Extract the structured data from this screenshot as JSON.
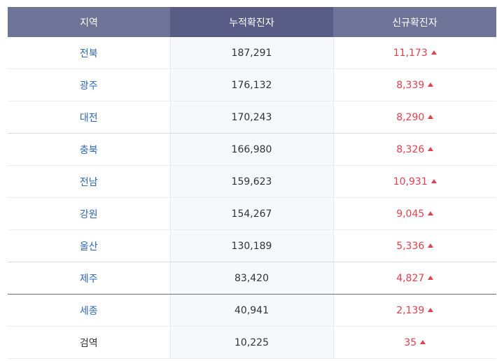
{
  "table": {
    "headers": {
      "region": "지역",
      "cumulative": "누적확진자",
      "new": "신규확진자"
    },
    "rows": [
      {
        "region": "전북",
        "cumulative": "187,291",
        "new": "11,173"
      },
      {
        "region": "광주",
        "cumulative": "176,132",
        "new": "8,339"
      },
      {
        "region": "대전",
        "cumulative": "170,243",
        "new": "8,290"
      },
      {
        "region": "충북",
        "cumulative": "166,980",
        "new": "8,326"
      },
      {
        "region": "전남",
        "cumulative": "159,623",
        "new": "10,931"
      },
      {
        "region": "강원",
        "cumulative": "154,267",
        "new": "9,045"
      },
      {
        "region": "울산",
        "cumulative": "130,189",
        "new": "5,336"
      },
      {
        "region": "제주",
        "cumulative": "83,420",
        "new": "4,827"
      },
      {
        "region": "세종",
        "cumulative": "40,941",
        "new": "2,139"
      },
      {
        "region": "검역",
        "cumulative": "10,225",
        "new": "35"
      }
    ],
    "increase_icon": "triangle-up-icon",
    "colors": {
      "header_bg": "#6e7398",
      "header_mid_bg": "#595d86",
      "region_link": "#2e67b2",
      "increase": "#e0414d"
    }
  }
}
